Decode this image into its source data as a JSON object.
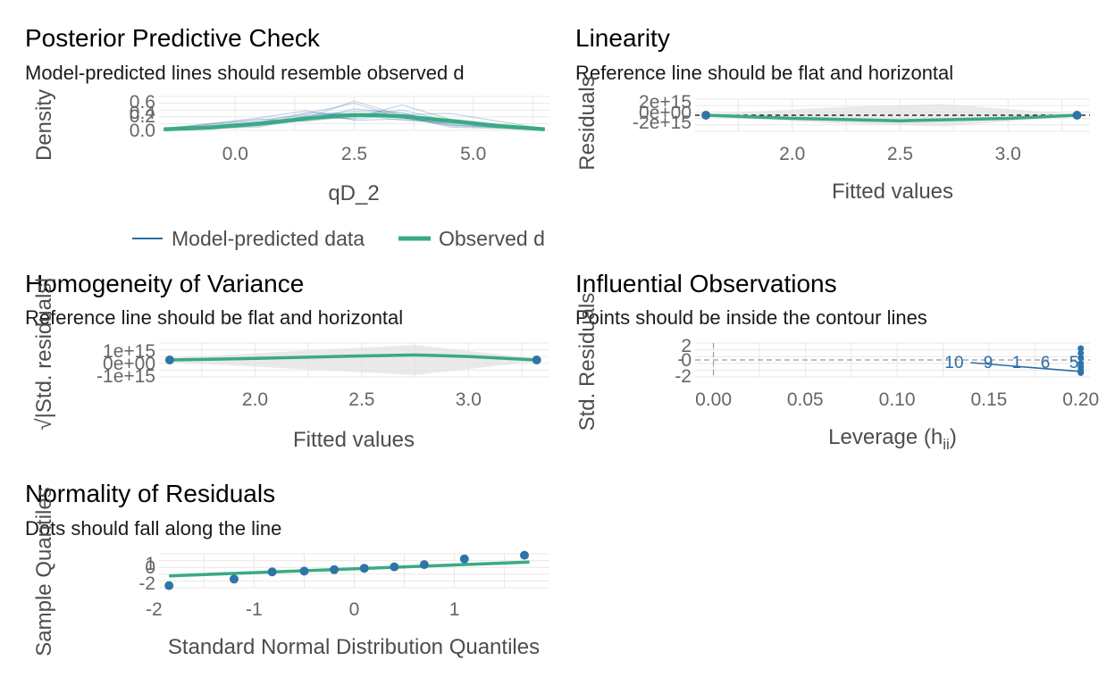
{
  "colors": {
    "model_line": "#2b6ca3",
    "observed_line": "#3aaa85",
    "point": "#2f74a7",
    "grid": "#e8e8e8",
    "band": "#e3e3e3",
    "ref_dash": "#000000"
  },
  "chart_data": [
    {
      "id": "ppc",
      "type": "line",
      "title": "Posterior Predictive Check",
      "subtitle": "Model-predicted lines should resemble observed d",
      "xlabel": "qD_2",
      "ylabel": "Density",
      "xlim": [
        -1.6,
        6.6
      ],
      "ylim": [
        0,
        0.6
      ],
      "x_ticks": [
        "0.0",
        "2.5",
        "5.0"
      ],
      "y_ticks": [
        "0.0",
        "0.2",
        "0.4",
        "0.6"
      ],
      "y_tick_labels_shown": [
        "0.6",
        "0.4",
        "0.2",
        "0.0"
      ],
      "legend": {
        "position": "bottom",
        "entries": [
          "Model-predicted data",
          "Observed d"
        ]
      },
      "observed": {
        "x": [
          -1.5,
          -0.5,
          0.5,
          1.5,
          2.0,
          2.5,
          3.0,
          3.5,
          4.5,
          5.5,
          6.5
        ],
        "y": [
          0.02,
          0.05,
          0.12,
          0.21,
          0.25,
          0.27,
          0.27,
          0.25,
          0.17,
          0.08,
          0.02
        ]
      },
      "model_predicted": [
        {
          "x": [
            -1.5,
            0.5,
            1.5,
            2.5,
            3.5,
            4.5,
            6.5
          ],
          "y": [
            0.01,
            0.1,
            0.3,
            0.48,
            0.22,
            0.1,
            0.01
          ]
        },
        {
          "x": [
            -1.5,
            0.5,
            1.5,
            2.5,
            3.5,
            4.5,
            6.5
          ],
          "y": [
            0.02,
            0.15,
            0.2,
            0.22,
            0.45,
            0.2,
            0.01
          ]
        },
        {
          "x": [
            -1.5,
            0.5,
            1.5,
            2.5,
            3.5,
            4.5,
            6.5
          ],
          "y": [
            0.03,
            0.22,
            0.35,
            0.18,
            0.2,
            0.12,
            0.02
          ]
        },
        {
          "x": [
            -1.5,
            0.5,
            1.5,
            2.5,
            3.5,
            4.5,
            6.5
          ],
          "y": [
            0.01,
            0.08,
            0.18,
            0.38,
            0.3,
            0.14,
            0.01
          ]
        },
        {
          "x": [
            -1.5,
            0.5,
            1.5,
            2.5,
            3.5,
            4.5,
            6.5
          ],
          "y": [
            0.02,
            0.12,
            0.25,
            0.2,
            0.28,
            0.3,
            0.03
          ]
        },
        {
          "x": [
            -1.5,
            0.5,
            1.5,
            2.5,
            3.5,
            4.5,
            6.5
          ],
          "y": [
            0.04,
            0.18,
            0.28,
            0.3,
            0.24,
            0.08,
            0.02
          ]
        },
        {
          "x": [
            -1.5,
            0.5,
            1.5,
            2.5,
            3.5,
            4.5,
            6.5
          ],
          "y": [
            0.01,
            0.06,
            0.22,
            0.52,
            0.26,
            0.06,
            0.01
          ]
        },
        {
          "x": [
            -1.5,
            0.5,
            1.5,
            2.5,
            3.5,
            4.5,
            6.5
          ],
          "y": [
            0.02,
            0.2,
            0.16,
            0.26,
            0.36,
            0.16,
            0.02
          ]
        },
        {
          "x": [
            -1.5,
            0.5,
            1.5,
            2.5,
            3.5,
            4.5,
            6.5
          ],
          "y": [
            0.03,
            0.14,
            0.32,
            0.28,
            0.18,
            0.14,
            0.03
          ]
        },
        {
          "x": [
            -1.5,
            0.5,
            1.5,
            2.5,
            3.5,
            4.5,
            6.5
          ],
          "y": [
            0.01,
            0.09,
            0.26,
            0.34,
            0.32,
            0.1,
            0.01
          ]
        }
      ]
    },
    {
      "id": "linearity",
      "type": "line",
      "title": "Linearity",
      "subtitle": "Reference line should be flat and horizontal",
      "xlabel": "Fitted values",
      "ylabel": "Residuals",
      "xlim": [
        1.55,
        3.38
      ],
      "ylim": [
        -2600000000000000.0,
        2600000000000000.0
      ],
      "x_ticks": [
        "2.0",
        "2.5",
        "3.0"
      ],
      "y_ticks": [
        "2e+15",
        "0e+00",
        "-2e+15"
      ],
      "reference_line": 0,
      "band": {
        "x": [
          1.6,
          2.2,
          2.7,
          3.3
        ],
        "upper": [
          200000000000000.0,
          1300000000000000.0,
          1800000000000000.0,
          200000000000000.0
        ],
        "lower": [
          -200000000000000.0,
          -1300000000000000.0,
          -1800000000000000.0,
          -200000000000000.0
        ]
      },
      "smooth": {
        "x": [
          1.6,
          2.0,
          2.5,
          3.0,
          3.32
        ],
        "y": [
          0,
          -500000000000000.0,
          -900000000000000.0,
          -500000000000000.0,
          0
        ]
      },
      "points": {
        "x": [
          1.6,
          3.32
        ],
        "y": [
          0,
          0
        ]
      }
    },
    {
      "id": "homogeneity",
      "type": "line",
      "title": "Homogeneity of Variance",
      "subtitle": "Reference line should be flat and horizontal",
      "xlabel": "Fitted values",
      "ylabel": "√|Std. residuals|",
      "xlim": [
        1.55,
        3.38
      ],
      "ylim": [
        -1700000000000000.0,
        1700000000000000.0
      ],
      "x_ticks": [
        "2.0",
        "2.5",
        "3.0"
      ],
      "y_ticks": [
        "1e+15",
        "0e+00",
        "-1e+15"
      ],
      "band": {
        "x": [
          1.6,
          2.2,
          2.75,
          3.3
        ],
        "upper": [
          200000000000000.0,
          900000000000000.0,
          1500000000000000.0,
          200000000000000.0
        ],
        "lower": [
          -200000000000000.0,
          -900000000000000.0,
          -1500000000000000.0,
          -200000000000000.0
        ]
      },
      "smooth": {
        "x": [
          1.6,
          2.0,
          2.5,
          2.75,
          3.0,
          3.32
        ],
        "y": [
          0,
          150000000000000.0,
          400000000000000.0,
          500000000000000.0,
          350000000000000.0,
          0
        ]
      },
      "points": {
        "x": [
          1.6,
          3.32
        ],
        "y": [
          0,
          0
        ]
      }
    },
    {
      "id": "influential",
      "type": "scatter",
      "title": "Influential Observations",
      "subtitle": "Points should be inside the contour lines",
      "xlabel": "Leverage (hii)",
      "ylabel": "Std. Residuals",
      "xlim": [
        -0.01,
        0.205
      ],
      "ylim": [
        -2.5,
        2.5
      ],
      "x_ticks": [
        "0.00",
        "0.05",
        "0.10",
        "0.15",
        "0.20"
      ],
      "y_ticks": [
        "2",
        "1",
        "0",
        "-1",
        "-2"
      ],
      "y_tick_labels_shown": [
        "2",
        "0",
        "-2"
      ],
      "point_labels": [
        "10",
        "9",
        "1",
        "6",
        "5"
      ],
      "points": {
        "x": [
          0.2,
          0.2,
          0.2,
          0.2,
          0.2,
          0.2,
          0.2
        ],
        "y": [
          1.7,
          1.0,
          0.3,
          -0.5,
          -1.0,
          -1.5,
          -1.9
        ]
      },
      "smooth": {
        "x": [
          0.14,
          0.2
        ],
        "y": [
          -0.4,
          -1.7
        ]
      }
    },
    {
      "id": "normality",
      "type": "scatter",
      "title": "Normality of Residuals",
      "subtitle": "Dots should fall along the line",
      "xlabel": "Standard Normal Distribution Quantiles",
      "ylabel": "Sample Quantiles",
      "xlim": [
        -1.95,
        1.95
      ],
      "ylim": [
        -2.4,
        2.3
      ],
      "x_ticks": [
        "-2",
        "-1",
        "0",
        "1"
      ],
      "y_ticks": [
        "1",
        "0",
        "-1",
        "-2"
      ],
      "y_tick_labels_shown": [
        "1",
        "0",
        "-2"
      ],
      "points": {
        "x": [
          -1.85,
          -1.2,
          -0.82,
          -0.5,
          -0.2,
          0.1,
          0.4,
          0.7,
          1.1,
          1.7
        ],
        "y": [
          -2.1,
          -1.2,
          -0.2,
          -0.1,
          0.1,
          0.3,
          0.5,
          0.8,
          1.6,
          2.1
        ]
      },
      "fit_line": {
        "x": [
          -1.85,
          1.75
        ],
        "y": [
          -0.75,
          1.15
        ]
      }
    }
  ]
}
